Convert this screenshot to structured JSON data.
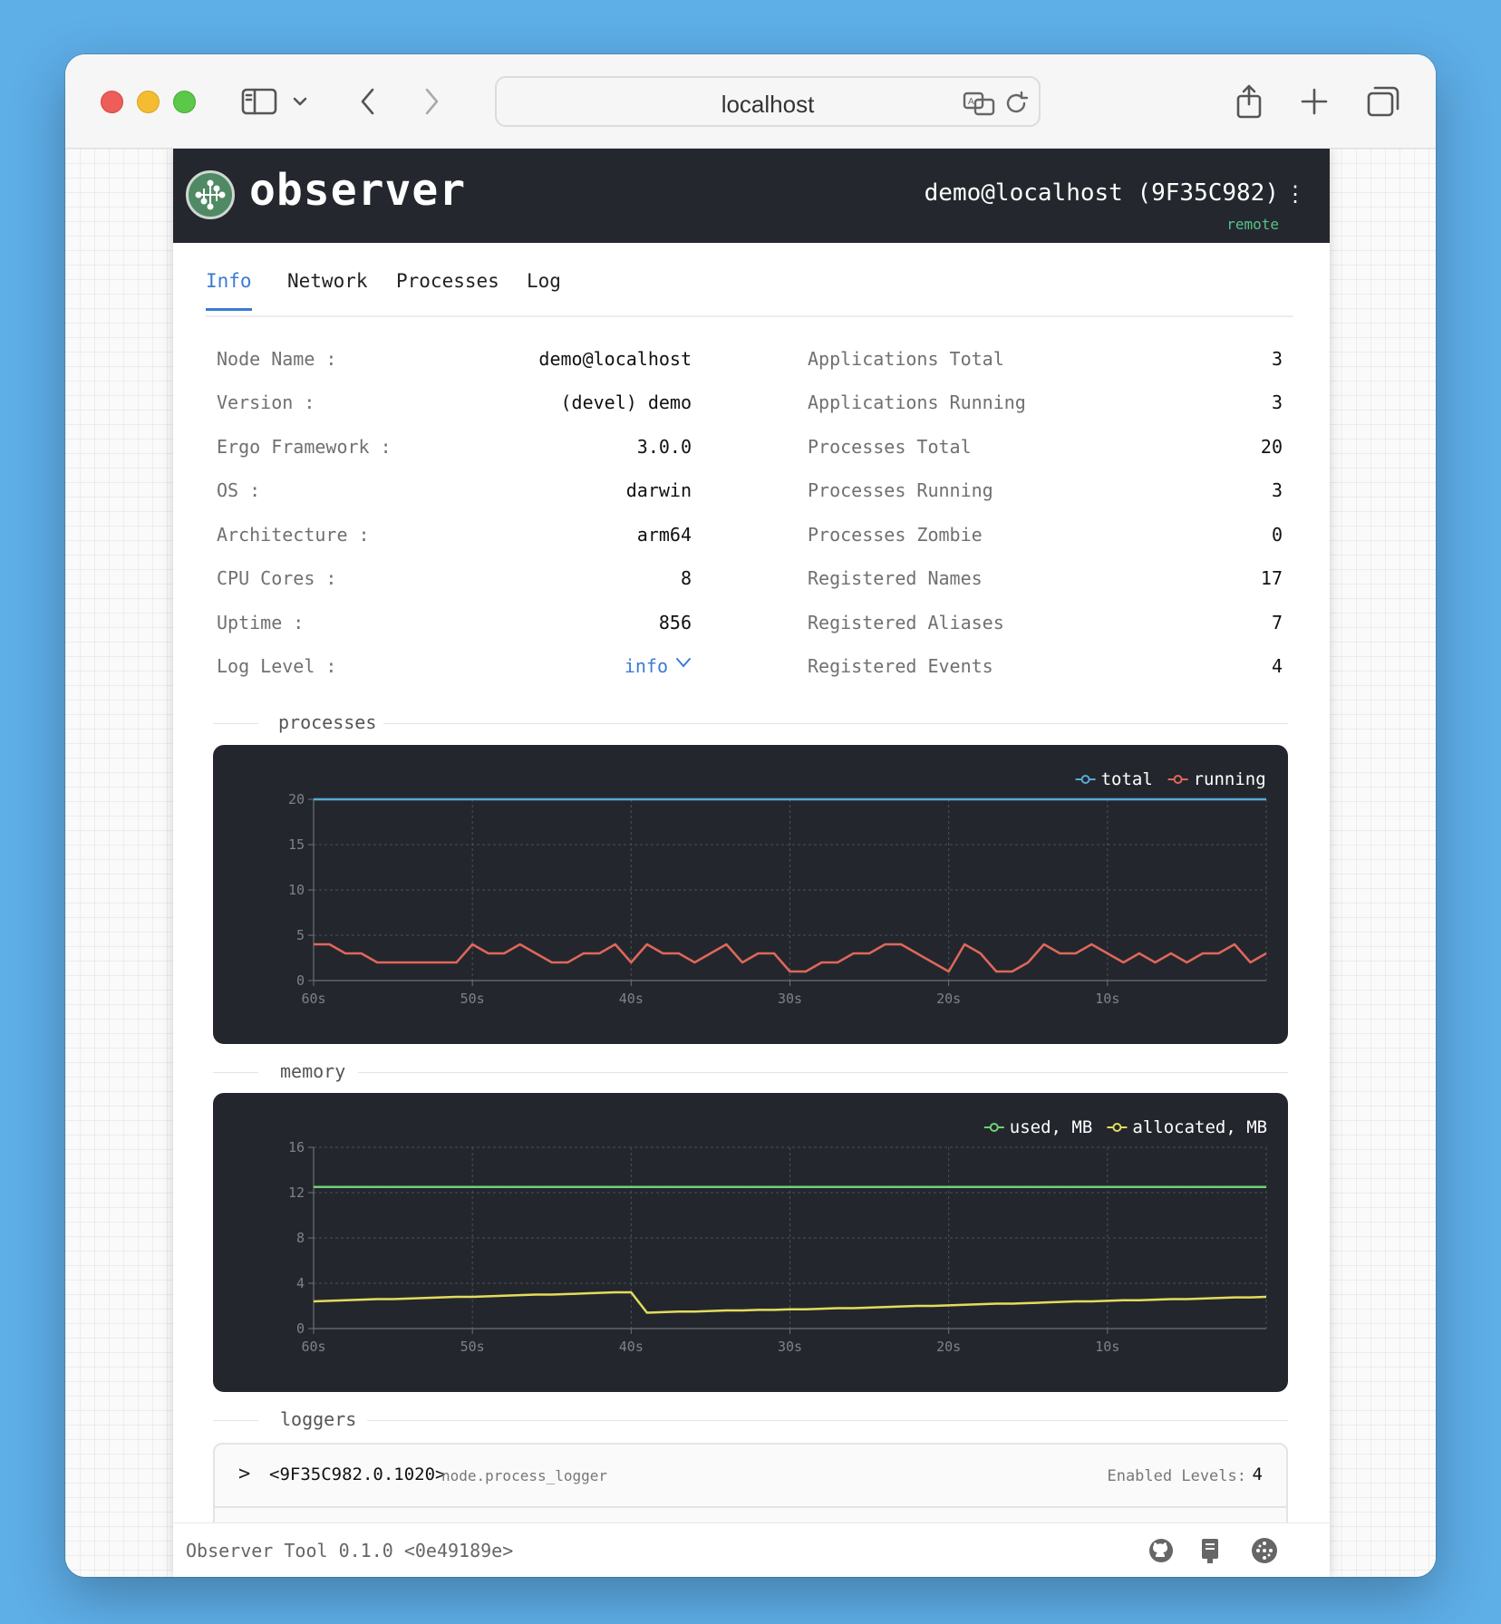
{
  "browser": {
    "url": "localhost",
    "icons": [
      "sidebar-icon",
      "chevron-down-icon",
      "back-icon",
      "forward-icon",
      "translate-icon",
      "reload-icon",
      "share-icon",
      "new-tab-icon",
      "tabs-overview-icon"
    ]
  },
  "header": {
    "brand": "observer",
    "node_id": "demo@localhost (9F35C982)",
    "mode": "remote",
    "menu_glyph": "⋮"
  },
  "tabs": [
    {
      "label": "Info",
      "active": true
    },
    {
      "label": "Network",
      "active": false
    },
    {
      "label": "Processes",
      "active": false
    },
    {
      "label": "Log",
      "active": false
    }
  ],
  "info_left": [
    {
      "label": "Node Name :",
      "value": "demo@localhost"
    },
    {
      "label": "Version :",
      "value": "(devel) demo"
    },
    {
      "label": "Ergo Framework :",
      "value": "3.0.0"
    },
    {
      "label": "OS :",
      "value": "darwin"
    },
    {
      "label": "Architecture :",
      "value": "arm64"
    },
    {
      "label": "CPU Cores :",
      "value": "8"
    },
    {
      "label": "Uptime :",
      "value": "856"
    },
    {
      "label": "Log Level :",
      "value": "info"
    }
  ],
  "info_right": [
    {
      "label": "Applications Total",
      "value": "3"
    },
    {
      "label": "Applications Running",
      "value": "3"
    },
    {
      "label": "Processes Total",
      "value": "20"
    },
    {
      "label": "Processes Running",
      "value": "3"
    },
    {
      "label": "Processes Zombie",
      "value": "0"
    },
    {
      "label": "Registered Names",
      "value": "17"
    },
    {
      "label": "Registered Aliases",
      "value": "7"
    },
    {
      "label": "Registered Events",
      "value": "4"
    }
  ],
  "sections": {
    "processes": "processes",
    "memory": "memory",
    "loggers": "loggers"
  },
  "chart_data": [
    {
      "type": "line",
      "title": "processes",
      "x_tick_labels": [
        "60s",
        "50s",
        "40s",
        "30s",
        "20s",
        "10s"
      ],
      "x": [
        60,
        59,
        58,
        57,
        56,
        55,
        54,
        53,
        52,
        51,
        50,
        49,
        48,
        47,
        46,
        45,
        44,
        43,
        42,
        41,
        40,
        39,
        38,
        37,
        36,
        35,
        34,
        33,
        32,
        31,
        30,
        29,
        28,
        27,
        26,
        25,
        24,
        23,
        22,
        21,
        20,
        19,
        18,
        17,
        16,
        15,
        14,
        13,
        12,
        11,
        10,
        9,
        8,
        7,
        6,
        5,
        4,
        3,
        2,
        1,
        0
      ],
      "xlim": [
        60,
        0
      ],
      "ylim": [
        0,
        20
      ],
      "y_ticks": [
        0,
        5,
        10,
        15,
        20
      ],
      "legend": "top-right",
      "grid": true,
      "series": [
        {
          "name": "total",
          "color": "#5aa9d6",
          "values": [
            20,
            20,
            20,
            20,
            20,
            20,
            20,
            20,
            20,
            20,
            20,
            20,
            20,
            20,
            20,
            20,
            20,
            20,
            20,
            20,
            20,
            20,
            20,
            20,
            20,
            20,
            20,
            20,
            20,
            20,
            20,
            20,
            20,
            20,
            20,
            20,
            20,
            20,
            20,
            20,
            20,
            20,
            20,
            20,
            20,
            20,
            20,
            20,
            20,
            20,
            20,
            20,
            20,
            20,
            20,
            20,
            20,
            20,
            20,
            20,
            20
          ]
        },
        {
          "name": "running",
          "color": "#e0675a",
          "values": [
            4,
            4,
            3,
            3,
            2,
            2,
            2,
            2,
            2,
            2,
            4,
            3,
            3,
            4,
            3,
            2,
            2,
            3,
            3,
            4,
            2,
            4,
            3,
            3,
            2,
            3,
            4,
            2,
            3,
            3,
            1,
            1,
            2,
            2,
            3,
            3,
            4,
            4,
            3,
            2,
            1,
            4,
            3,
            1,
            1,
            2,
            4,
            3,
            3,
            4,
            3,
            2,
            3,
            2,
            3,
            2,
            3,
            3,
            4,
            2,
            3
          ]
        }
      ]
    },
    {
      "type": "line",
      "title": "memory",
      "x_tick_labels": [
        "60s",
        "50s",
        "40s",
        "30s",
        "20s",
        "10s"
      ],
      "x": [
        60,
        59,
        58,
        57,
        56,
        55,
        54,
        53,
        52,
        51,
        50,
        49,
        48,
        47,
        46,
        45,
        44,
        43,
        42,
        41,
        40,
        39,
        38,
        37,
        36,
        35,
        34,
        33,
        32,
        31,
        30,
        29,
        28,
        27,
        26,
        25,
        24,
        23,
        22,
        21,
        20,
        19,
        18,
        17,
        16,
        15,
        14,
        13,
        12,
        11,
        10,
        9,
        8,
        7,
        6,
        5,
        4,
        3,
        2,
        1,
        0
      ],
      "xlim": [
        60,
        0
      ],
      "ylim": [
        0,
        16
      ],
      "y_ticks": [
        0,
        4,
        8,
        12,
        16
      ],
      "legend": "top-right",
      "grid": true,
      "series": [
        {
          "name": "used, MB",
          "color": "#6fd07a",
          "values": [
            12.5,
            12.5,
            12.5,
            12.5,
            12.5,
            12.5,
            12.5,
            12.5,
            12.5,
            12.5,
            12.5,
            12.5,
            12.5,
            12.5,
            12.5,
            12.5,
            12.5,
            12.5,
            12.5,
            12.5,
            12.5,
            12.5,
            12.5,
            12.5,
            12.5,
            12.5,
            12.5,
            12.5,
            12.5,
            12.5,
            12.5,
            12.5,
            12.5,
            12.5,
            12.5,
            12.5,
            12.5,
            12.5,
            12.5,
            12.5,
            12.5,
            12.5,
            12.5,
            12.5,
            12.5,
            12.5,
            12.5,
            12.5,
            12.5,
            12.5,
            12.5,
            12.5,
            12.5,
            12.5,
            12.5,
            12.5,
            12.5,
            12.5,
            12.5,
            12.5,
            12.5
          ]
        },
        {
          "name": "allocated, MB",
          "color": "#e3dc5c",
          "values": [
            2.4,
            2.45,
            2.5,
            2.55,
            2.6,
            2.6,
            2.65,
            2.7,
            2.75,
            2.8,
            2.8,
            2.85,
            2.9,
            2.95,
            3.0,
            3.0,
            3.05,
            3.1,
            3.15,
            3.2,
            3.2,
            1.4,
            1.45,
            1.5,
            1.5,
            1.55,
            1.6,
            1.6,
            1.65,
            1.65,
            1.7,
            1.7,
            1.75,
            1.8,
            1.8,
            1.85,
            1.9,
            1.95,
            2.0,
            2.0,
            2.05,
            2.1,
            2.15,
            2.2,
            2.2,
            2.25,
            2.3,
            2.35,
            2.4,
            2.4,
            2.45,
            2.5,
            2.5,
            2.55,
            2.6,
            2.6,
            2.65,
            2.7,
            2.75,
            2.75,
            2.8
          ]
        }
      ]
    }
  ],
  "loggers": [
    {
      "expand_glyph": ">",
      "pid": "<9F35C982.0.1020>",
      "name": "node.process_logger",
      "levels_label": "Enabled Levels:",
      "levels": "4"
    }
  ],
  "footer": {
    "version": "Observer Tool 0.1.0 <0e49189e>",
    "icons": [
      "github-icon",
      "docs-icon",
      "ergo-logo-icon"
    ]
  }
}
